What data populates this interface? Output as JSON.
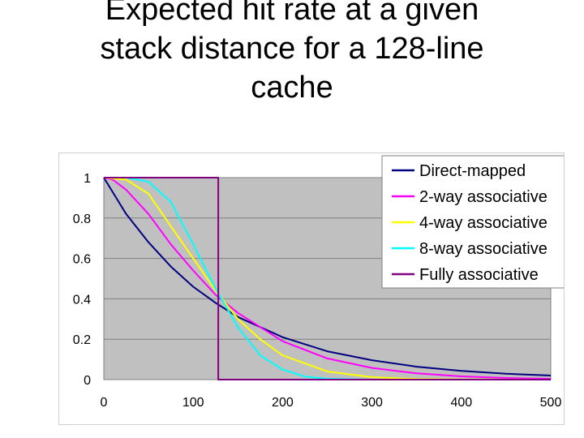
{
  "slide": {
    "title_lines": [
      "Expected hit rate at a given",
      "stack distance for a 128-line",
      "cache"
    ]
  },
  "chart_data": {
    "type": "line",
    "title": "",
    "xlabel": "",
    "ylabel": "",
    "xlim": [
      0,
      500
    ],
    "ylim": [
      0,
      1
    ],
    "x_ticks": [
      "0",
      "100",
      "200",
      "300",
      "400",
      "500"
    ],
    "y_ticks": [
      "0",
      "0.2",
      "0.4",
      "0.6",
      "0.8",
      "1"
    ],
    "grid": true,
    "plot_background": "#c0c0c0",
    "legend_position": "top-right",
    "series": [
      {
        "name": "Direct-mapped",
        "color": "#000080",
        "x": [
          0,
          25,
          50,
          75,
          100,
          125,
          150,
          200,
          250,
          300,
          350,
          400,
          450,
          500
        ],
        "y": [
          1.0,
          0.82,
          0.68,
          0.56,
          0.46,
          0.38,
          0.31,
          0.21,
          0.14,
          0.096,
          0.064,
          0.043,
          0.029,
          0.02
        ]
      },
      {
        "name": "2-way associative",
        "color": "#ff00ff",
        "x": [
          0,
          10,
          25,
          50,
          75,
          100,
          125,
          150,
          200,
          250,
          300,
          350,
          400,
          450,
          500
        ],
        "y": [
          1.0,
          0.99,
          0.94,
          0.82,
          0.67,
          0.54,
          0.42,
          0.33,
          0.19,
          0.105,
          0.058,
          0.031,
          0.016,
          0.008,
          0.004
        ]
      },
      {
        "name": "4-way associative",
        "color": "#ffff00",
        "x": [
          0,
          25,
          50,
          75,
          100,
          125,
          150,
          175,
          200,
          250,
          300,
          350,
          400,
          500
        ],
        "y": [
          1.0,
          0.99,
          0.92,
          0.76,
          0.6,
          0.44,
          0.3,
          0.2,
          0.12,
          0.04,
          0.012,
          0.003,
          0.001,
          0.0
        ]
      },
      {
        "name": "8-way associative",
        "color": "#00ffff",
        "x": [
          0,
          25,
          50,
          75,
          100,
          125,
          150,
          175,
          200,
          225,
          250,
          300,
          500
        ],
        "y": [
          1.0,
          1.0,
          0.98,
          0.88,
          0.67,
          0.45,
          0.26,
          0.12,
          0.05,
          0.015,
          0.004,
          0.0,
          0.0
        ]
      },
      {
        "name": "Fully associative",
        "color": "#800080",
        "x": [
          0,
          128,
          128,
          500
        ],
        "y": [
          1.0,
          1.0,
          0.0,
          0.0
        ]
      }
    ]
  }
}
